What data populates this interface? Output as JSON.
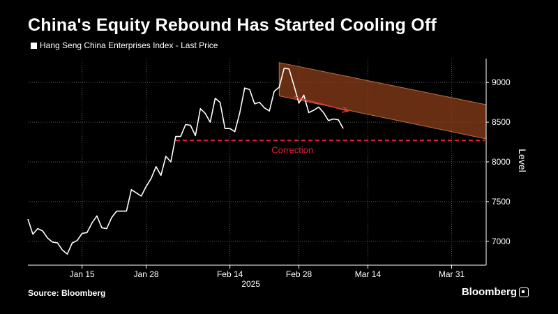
{
  "title": "China's Equity Rebound Has Started Cooling Off",
  "source": "Source: Bloomberg",
  "brand": "Bloomberg",
  "chart_data": {
    "type": "line",
    "legend": "Hang Seng China Enterprises Index - Last Price",
    "ylabel": "Level",
    "year_label": "2025",
    "ylim": [
      6700,
      9300
    ],
    "yticks": [
      7000,
      7500,
      8000,
      8500,
      9000
    ],
    "xlim": [
      "2025-01-04",
      "2025-04-07"
    ],
    "xticks": [
      {
        "date": "2025-01-15",
        "label": "Jan 15"
      },
      {
        "date": "2025-01-28",
        "label": "Jan 28"
      },
      {
        "date": "2025-02-14",
        "label": "Feb 14"
      },
      {
        "date": "2025-02-28",
        "label": "Feb 28"
      },
      {
        "date": "2025-03-14",
        "label": "Mar 14"
      },
      {
        "date": "2025-03-31",
        "label": "Mar 31"
      }
    ],
    "series": [
      {
        "name": "Hang Seng China Enterprises Index - Last Price",
        "color": "#ffffff",
        "points": [
          [
            "2025-01-04",
            7280
          ],
          [
            "2025-01-05",
            7090
          ],
          [
            "2025-01-06",
            7160
          ],
          [
            "2025-01-07",
            7130
          ],
          [
            "2025-01-08",
            7040
          ],
          [
            "2025-01-09",
            6990
          ],
          [
            "2025-01-10",
            6980
          ],
          [
            "2025-01-11",
            6890
          ],
          [
            "2025-01-12",
            6840
          ],
          [
            "2025-01-13",
            6980
          ],
          [
            "2025-01-14",
            7010
          ],
          [
            "2025-01-15",
            7100
          ],
          [
            "2025-01-16",
            7110
          ],
          [
            "2025-01-17",
            7230
          ],
          [
            "2025-01-18",
            7320
          ],
          [
            "2025-01-19",
            7170
          ],
          [
            "2025-01-20",
            7160
          ],
          [
            "2025-01-21",
            7300
          ],
          [
            "2025-01-22",
            7380
          ],
          [
            "2025-01-23",
            7380
          ],
          [
            "2025-01-24",
            7380
          ],
          [
            "2025-01-25",
            7650
          ],
          [
            "2025-01-27",
            7570
          ],
          [
            "2025-01-28",
            7690
          ],
          [
            "2025-01-29",
            7790
          ],
          [
            "2025-01-30",
            7940
          ],
          [
            "2025-01-31",
            7830
          ],
          [
            "2025-02-01",
            8070
          ],
          [
            "2025-02-02",
            8000
          ],
          [
            "2025-02-03",
            8320
          ],
          [
            "2025-02-04",
            8320
          ],
          [
            "2025-02-05",
            8470
          ],
          [
            "2025-02-06",
            8460
          ],
          [
            "2025-02-07",
            8330
          ],
          [
            "2025-02-08",
            8670
          ],
          [
            "2025-02-09",
            8610
          ],
          [
            "2025-02-10",
            8500
          ],
          [
            "2025-02-11",
            8800
          ],
          [
            "2025-02-12",
            8750
          ],
          [
            "2025-02-13",
            8420
          ],
          [
            "2025-02-14",
            8420
          ],
          [
            "2025-02-15",
            8380
          ],
          [
            "2025-02-16",
            8620
          ],
          [
            "2025-02-17",
            8930
          ],
          [
            "2025-02-18",
            8910
          ],
          [
            "2025-02-19",
            8730
          ],
          [
            "2025-02-20",
            8750
          ],
          [
            "2025-02-21",
            8680
          ],
          [
            "2025-02-22",
            8640
          ],
          [
            "2025-02-23",
            8890
          ],
          [
            "2025-02-24",
            8940
          ],
          [
            "2025-02-25",
            9180
          ],
          [
            "2025-02-26",
            9170
          ],
          [
            "2025-02-27",
            8960
          ],
          [
            "2025-02-28",
            8740
          ],
          [
            "2025-03-01",
            8840
          ],
          [
            "2025-03-02",
            8620
          ],
          [
            "2025-03-03",
            8650
          ],
          [
            "2025-03-04",
            8690
          ],
          [
            "2025-03-05",
            8620
          ],
          [
            "2025-03-06",
            8520
          ],
          [
            "2025-03-07",
            8540
          ],
          [
            "2025-03-08",
            8530
          ],
          [
            "2025-03-09",
            8420
          ]
        ]
      }
    ],
    "annotations": [
      {
        "type": "hline",
        "y": 8270,
        "from": "2025-02-03",
        "to": "2025-04-07",
        "style": "dashed",
        "color": "#e0203a",
        "label": "Correction",
        "label_at": "2025-02-23"
      },
      {
        "type": "channel",
        "color": "#8a3e1a",
        "upper": [
          [
            "2025-02-24",
            9250
          ],
          [
            "2025-04-07",
            8720
          ]
        ],
        "lower": [
          [
            "2025-02-24",
            8830
          ],
          [
            "2025-04-07",
            8290
          ]
        ]
      },
      {
        "type": "arrow",
        "color": "#e03a3a",
        "from": [
          "2025-02-27",
          8820
        ],
        "to": [
          "2025-03-10",
          8640
        ]
      }
    ],
    "colors": {
      "background": "#000000",
      "line": "#ffffff",
      "grid": "#5a5a5a",
      "correction": "#e0203a",
      "channel": "#8a3e1a"
    },
    "grid": true
  }
}
